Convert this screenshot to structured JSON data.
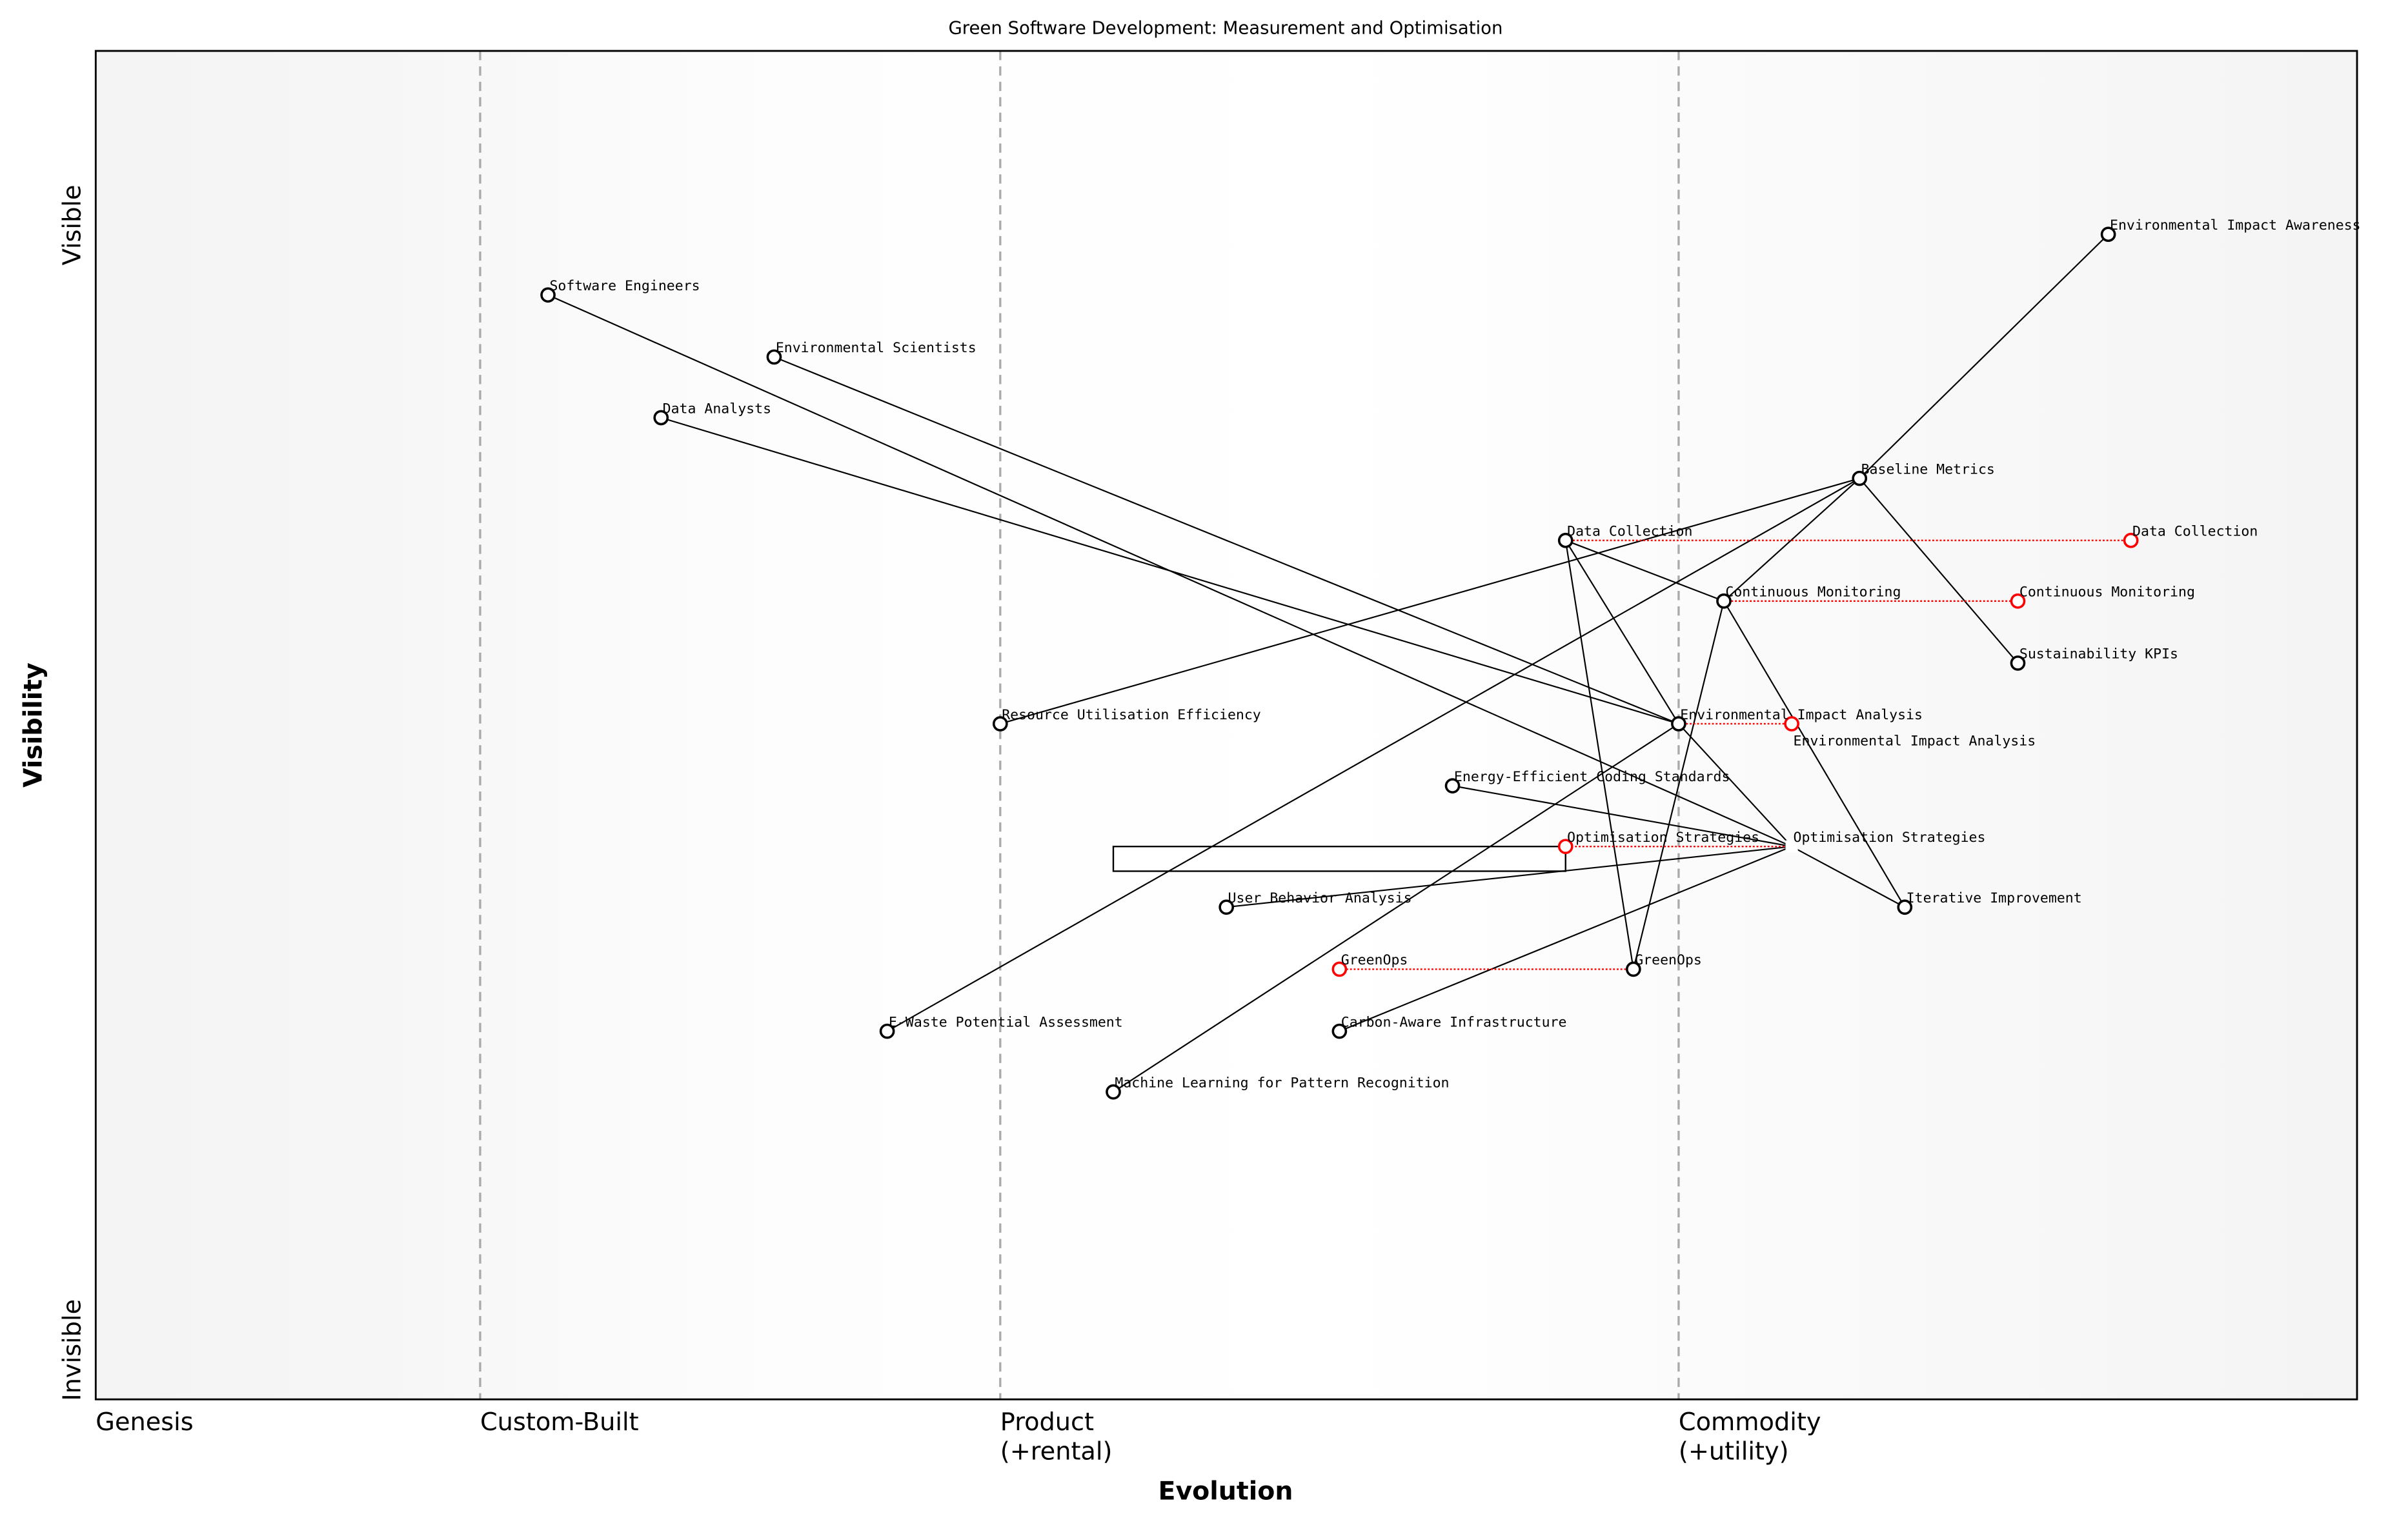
{
  "title": "Green Software Development: Measurement and Optimisation",
  "x_axis_label": "Evolution",
  "y_axis_label": "Visibility",
  "y_top_label": "Visible",
  "y_bottom_label": "Invisible",
  "stages": [
    {
      "label": "Genesis",
      "line": 0.0,
      "line_visible": false
    },
    {
      "label": "Custom-Built",
      "line": 0.17,
      "line_visible": true
    },
    {
      "label": "Product\n(+rental)",
      "line": 0.4,
      "line_visible": true
    },
    {
      "label": "Commodity\n(+utility)",
      "line": 0.7,
      "line_visible": true
    }
  ],
  "colors": {
    "node": "#000000",
    "evolve": "#ff0000",
    "stage_line": "#aaaaaa",
    "background_edge": "#f4f4f4"
  },
  "components": [
    {
      "id": "eiaw",
      "name": "Environmental Impact Awareness",
      "evolution": 0.89,
      "visibility": 0.864
    },
    {
      "id": "se",
      "name": "Software Engineers",
      "evolution": 0.2,
      "visibility": 0.819
    },
    {
      "id": "es",
      "name": "Environmental Scientists",
      "evolution": 0.3,
      "visibility": 0.773
    },
    {
      "id": "da",
      "name": "Data Analysts",
      "evolution": 0.25,
      "visibility": 0.728
    },
    {
      "id": "bm",
      "name": "Baseline Metrics",
      "evolution": 0.78,
      "visibility": 0.683
    },
    {
      "id": "dc",
      "name": "Data Collection",
      "evolution": 0.65,
      "visibility": 0.637
    },
    {
      "id": "cm",
      "name": "Continuous Monitoring",
      "evolution": 0.72,
      "visibility": 0.592
    },
    {
      "id": "sk",
      "name": "Sustainability KPIs",
      "evolution": 0.85,
      "visibility": 0.546
    },
    {
      "id": "rue",
      "name": "Resource Utilisation Efficiency",
      "evolution": 0.4,
      "visibility": 0.501
    },
    {
      "id": "eia",
      "name": "Environmental Impact Analysis",
      "evolution": 0.7,
      "visibility": 0.501
    },
    {
      "id": "eecs",
      "name": "Energy-Efficient Coding Standards",
      "evolution": 0.6,
      "visibility": 0.455
    },
    {
      "id": "os",
      "name": "Optimisation Strategies",
      "evolution": 0.75,
      "visibility": 0.41,
      "hidden_marker": true
    },
    {
      "id": "ii",
      "name": "Iterative Improvement",
      "evolution": 0.8,
      "visibility": 0.365
    },
    {
      "id": "uba",
      "name": "User Behavior Analysis",
      "evolution": 0.5,
      "visibility": 0.365
    },
    {
      "id": "go",
      "name": "GreenOps",
      "evolution": 0.68,
      "visibility": 0.319
    },
    {
      "id": "ew",
      "name": "E-Waste Potential Assessment",
      "evolution": 0.35,
      "visibility": 0.273
    },
    {
      "id": "cai",
      "name": "Carbon-Aware Infrastructure",
      "evolution": 0.55,
      "visibility": 0.273
    },
    {
      "id": "ml",
      "name": "Machine Learning for Pattern Recognition",
      "evolution": 0.45,
      "visibility": 0.228
    }
  ],
  "evolutions": [
    {
      "from": "dc",
      "name": "Data Collection",
      "evolution": 0.9
    },
    {
      "from": "cm",
      "name": "Continuous Monitoring",
      "evolution": 0.85
    },
    {
      "from": "eia",
      "name": "Environmental Impact Analysis",
      "evolution": 0.75
    },
    {
      "from": "os",
      "name": "Optimisation Strategies",
      "evolution": 0.65
    },
    {
      "from": "go",
      "name": "GreenOps",
      "evolution": 0.55
    }
  ],
  "pipelines": [
    {
      "component": "os",
      "evolution_start": 0.45,
      "evolution_end": 0.65
    }
  ],
  "links": [
    [
      "eiaw",
      "bm"
    ],
    [
      "bm",
      "rue"
    ],
    [
      "bm",
      "cm"
    ],
    [
      "bm",
      "sk"
    ],
    [
      "bm",
      "ew"
    ],
    [
      "dc",
      "cm"
    ],
    [
      "dc",
      "eia"
    ],
    [
      "dc",
      "go"
    ],
    [
      "cm",
      "go"
    ],
    [
      "cm",
      "ii"
    ],
    [
      "se",
      "os"
    ],
    [
      "es",
      "eia"
    ],
    [
      "da",
      "eia"
    ],
    [
      "ml",
      "eia"
    ],
    [
      "eia",
      "os"
    ],
    [
      "eecs",
      "os"
    ],
    [
      "uba",
      "os"
    ],
    [
      "cai",
      "os"
    ],
    [
      "os",
      "ii"
    ]
  ]
}
